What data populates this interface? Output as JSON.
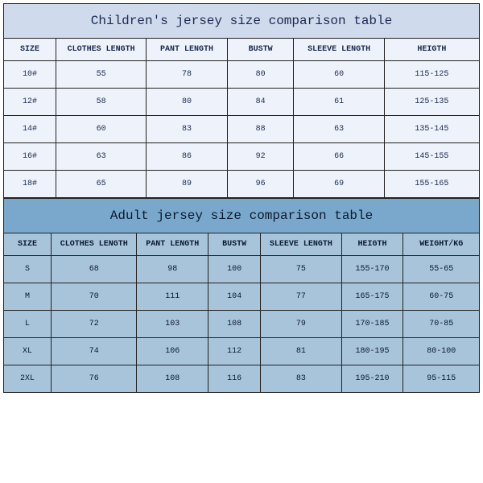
{
  "children": {
    "title": "Children's jersey size comparison table",
    "columns": [
      "SIZE",
      "CLOTHES LENGTH",
      "PANT LENGTH",
      "BUSTW",
      "SLEEVE LENGTH",
      "HEIGTH"
    ],
    "col_widths": [
      "11%",
      "19%",
      "17%",
      "14%",
      "19%",
      "20%"
    ],
    "rows": [
      [
        "10#",
        "55",
        "78",
        "80",
        "60",
        "115-125"
      ],
      [
        "12#",
        "58",
        "80",
        "84",
        "61",
        "125-135"
      ],
      [
        "14#",
        "60",
        "83",
        "88",
        "63",
        "135-145"
      ],
      [
        "16#",
        "63",
        "86",
        "92",
        "66",
        "145-155"
      ],
      [
        "18#",
        "65",
        "89",
        "96",
        "69",
        "155-165"
      ]
    ],
    "title_bg": "#cfdaed",
    "cell_bg": "#eef2fa",
    "text_color": "#1a2a50",
    "border_color": "#222222"
  },
  "adult": {
    "title": "Adult jersey size comparison table",
    "columns": [
      "SIZE",
      "CLOTHES LENGTH",
      "PANT LENGTH",
      "BUSTW",
      "SLEEVE LENGTH",
      "HEIGTH",
      "WEIGHT/KG"
    ],
    "col_widths": [
      "10%",
      "18%",
      "15%",
      "11%",
      "17%",
      "13%",
      "16%"
    ],
    "rows": [
      [
        "S",
        "68",
        "98",
        "100",
        "75",
        "155-170",
        "55-65"
      ],
      [
        "M",
        "70",
        "111",
        "104",
        "77",
        "165-175",
        "60-75"
      ],
      [
        "L",
        "72",
        "103",
        "108",
        "79",
        "170-185",
        "70-85"
      ],
      [
        "XL",
        "74",
        "106",
        "112",
        "81",
        "180-195",
        "80-100"
      ],
      [
        "2XL",
        "76",
        "108",
        "116",
        "83",
        "195-210",
        "95-115"
      ]
    ],
    "title_bg": "#7aa8cc",
    "cell_bg": "#a8c4db",
    "text_color": "#0a1a30",
    "border_color": "#222222"
  }
}
